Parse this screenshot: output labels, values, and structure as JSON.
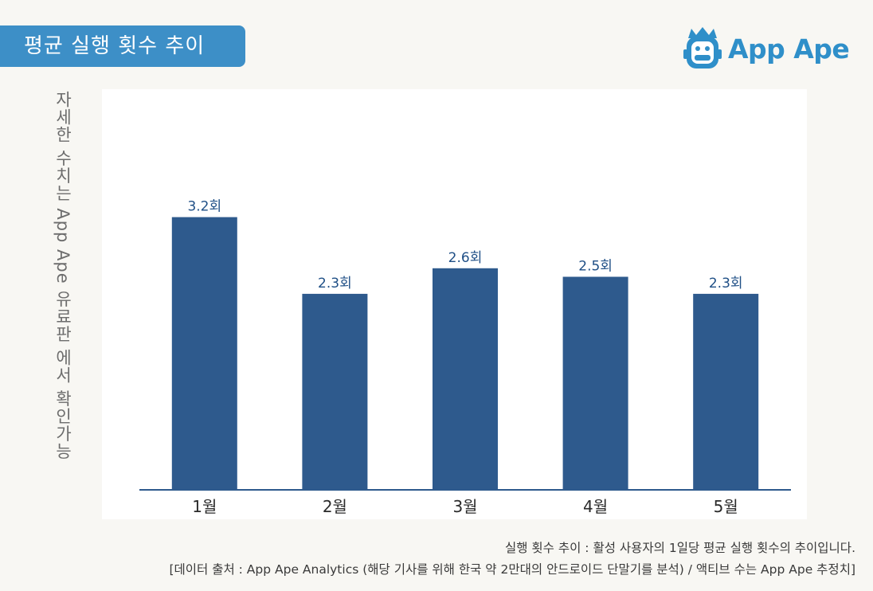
{
  "header": {
    "title": "평균 실행 횟수 추이",
    "brand_name": "App Ape"
  },
  "side_note": "자세한 수치는 App Ape 유료판 에서 확인가능",
  "chart_data": {
    "type": "bar",
    "title": "평균 실행 횟수 추이",
    "categories": [
      "1월",
      "2월",
      "3월",
      "4월",
      "5월"
    ],
    "values": [
      3.2,
      2.3,
      2.6,
      2.5,
      2.3
    ],
    "value_labels": [
      "3.2회",
      "2.3회",
      "2.6회",
      "2.5회",
      "2.3회"
    ],
    "xlabel": "",
    "ylabel": "",
    "ylim": [
      0,
      4
    ],
    "grid": false,
    "legend": "none",
    "bar_color": "#2e5a8d",
    "label_color": "#1f4f86"
  },
  "footnotes": {
    "definition": "실행 횟수 추이 : 활성 사용자의 1일당 평균 실행 횟수의 추이입니다.",
    "source": "[데이터 출처 : App Ape Analytics (해당 기사를 위해 한국 약 2만대의 안드로이드 단말기를 분석) / 액티브 수는 App Ape 추정치]"
  },
  "colors": {
    "banner": "#3d8fc7",
    "brand": "#2f8fc9",
    "axis": "#2e5a8d"
  }
}
